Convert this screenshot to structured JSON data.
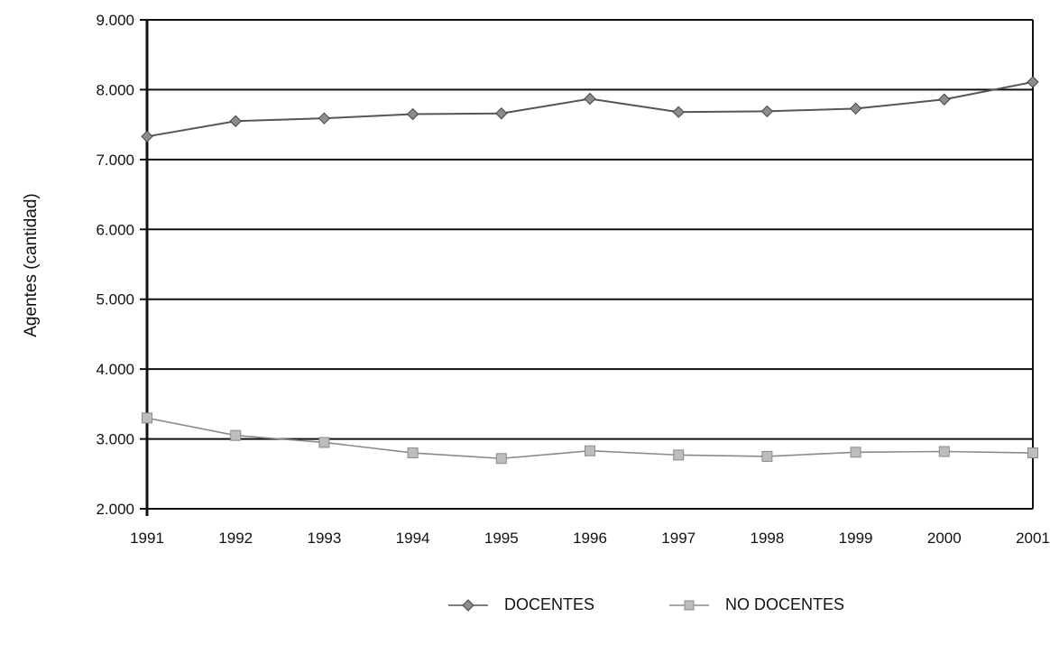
{
  "chart_data": {
    "type": "line",
    "title": "",
    "xlabel": "",
    "ylabel": "Agentes (cantidad)",
    "categories": [
      "1991",
      "1992",
      "1993",
      "1994",
      "1995",
      "1996",
      "1997",
      "1998",
      "1999",
      "2000",
      "2001"
    ],
    "y_ticks": [
      "2.000",
      "3.000",
      "4.000",
      "5.000",
      "6.000",
      "7.000",
      "8.000",
      "9.000"
    ],
    "ylim": [
      2000,
      9000
    ],
    "grid": true,
    "legend_position": "bottom",
    "series": [
      {
        "name": "DOCENTES",
        "color": "#555555",
        "marker": "diamond",
        "values": [
          7330,
          7550,
          7590,
          7650,
          7660,
          7870,
          7680,
          7690,
          7730,
          7860,
          8110
        ]
      },
      {
        "name": "NO DOCENTES",
        "color": "#8a8a8a",
        "marker": "square",
        "values": [
          3300,
          3050,
          2950,
          2800,
          2720,
          2830,
          2770,
          2750,
          2810,
          2820,
          2800
        ]
      }
    ]
  }
}
